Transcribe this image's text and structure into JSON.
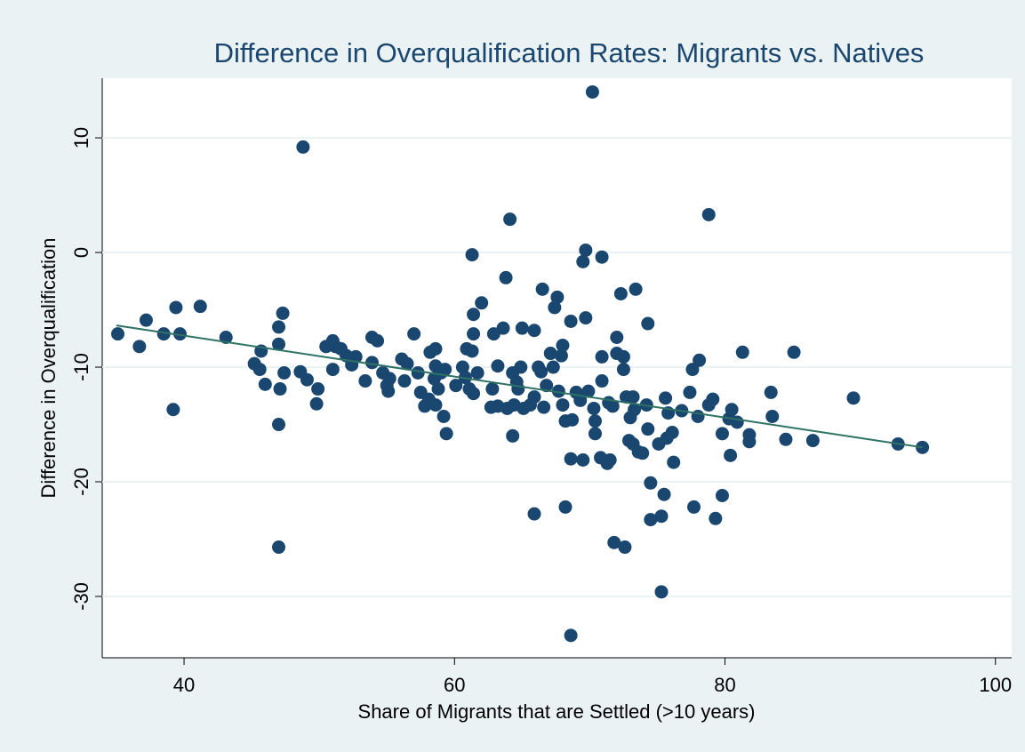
{
  "chart_data": {
    "type": "scatter",
    "title": "Difference in Overqualification Rates: Migrants vs. Natives",
    "x_label": "Share of Migrants that are Settled (>10 years)",
    "y_label": "Difference in Overqualification",
    "xlim": [
      33.95,
      101.2
    ],
    "ylim": [
      -35.35,
      15.2
    ],
    "xticks": [
      40,
      60,
      80,
      100
    ],
    "yticks": [
      -30,
      -20,
      -10,
      0,
      10
    ],
    "grid": true,
    "point_color": "#1a476f",
    "x": [
      35.1,
      36.7,
      37.2,
      38.5,
      39.4,
      39.7,
      39.2,
      41.2,
      43.1,
      48.8,
      70.2,
      64.1,
      78.8,
      69.7,
      61.3,
      70.9,
      69.5,
      63.8,
      66.5,
      73.4,
      67.6,
      72.3,
      67.4,
      62.0,
      61.4,
      69.7,
      68.6,
      74.3,
      65.0,
      65.9,
      63.6,
      62.9,
      61.4,
      57.0,
      47.3,
      47.0,
      47.0,
      72.0,
      53.9,
      54.3,
      68.0,
      60.9,
      61.3,
      58.6,
      58.2,
      67.1,
      67.9,
      72.0,
      72.5,
      70.9,
      78.1,
      81.3,
      85.1,
      45.7,
      45.2,
      45.6,
      46.0,
      47.4,
      47.1,
      47.0,
      47.0,
      48.6,
      49.1,
      49.9,
      49.8,
      50.5,
      51.0,
      51.2,
      51.6,
      51.0,
      52.0,
      52.4,
      52.7,
      53.4,
      53.9,
      54.7,
      55.0,
      55.2,
      55.1,
      56.1,
      56.5,
      56.3,
      57.3,
      57.5,
      57.8,
      58.1,
      58.6,
      59.0,
      58.5,
      58.8,
      59.3,
      58.6,
      59.2,
      59.4,
      60.1,
      60.6,
      60.8,
      61.1,
      61.4,
      61.7,
      62.8,
      62.7,
      63.2,
      63.2,
      63.9,
      64.3,
      64.6,
      64.9,
      64.4,
      65.1,
      64.7,
      65.6,
      65.9,
      66.2,
      66.4,
      66.6,
      64.3,
      65.9,
      66.8,
      67.7,
      68.0,
      68.2,
      68.7,
      68.6,
      68.2,
      68.6,
      69.0,
      69.3,
      69.5,
      69.9,
      70.4,
      70.4,
      70.3,
      70.9,
      71.4,
      70.8,
      71.5,
      71.3,
      71.7,
      71.8,
      72.5,
      72.7,
      72.6,
      73.2,
      73.0,
      73.3,
      72.9,
      73.2,
      73.6,
      73.9,
      74.2,
      74.3,
      74.5,
      74.5,
      75.3,
      75.3,
      75.5,
      75.1,
      75.6,
      75.8,
      75.7,
      76.1,
      76.2,
      76.8,
      77.4,
      77.6,
      77.7,
      78.0,
      78.8,
      79.1,
      79.3,
      79.8,
      79.8,
      80.3,
      80.5,
      80.4,
      80.9,
      81.8,
      81.8,
      83.4,
      83.5,
      84.5,
      86.5,
      89.5,
      92.8,
      94.6,
      67.3
    ],
    "y": [
      -7.1,
      -8.2,
      -5.9,
      -7.1,
      -4.8,
      -7.1,
      -13.7,
      -4.7,
      -7.4,
      9.2,
      14.0,
      2.9,
      3.3,
      0.2,
      -0.2,
      -0.4,
      -0.8,
      -2.2,
      -3.2,
      -3.2,
      -3.9,
      -3.6,
      -4.8,
      -4.4,
      -5.4,
      -5.7,
      -6.0,
      -6.2,
      -6.6,
      -6.8,
      -6.6,
      -7.1,
      -7.1,
      -7.1,
      -5.3,
      -6.5,
      -8.0,
      -7.4,
      -7.4,
      -7.7,
      -8.1,
      -8.4,
      -8.6,
      -8.4,
      -8.7,
      -8.8,
      -9.0,
      -8.8,
      -9.1,
      -9.1,
      -9.4,
      -8.7,
      -8.7,
      -8.6,
      -9.7,
      -10.2,
      -11.5,
      -10.5,
      -11.9,
      -15.0,
      -25.7,
      -10.4,
      -11.1,
      -11.9,
      -13.2,
      -8.2,
      -7.7,
      -8.2,
      -8.4,
      -10.2,
      -9.0,
      -9.8,
      -9.1,
      -11.2,
      -9.6,
      -10.5,
      -11.6,
      -11.0,
      -12.1,
      -9.3,
      -9.7,
      -11.2,
      -10.5,
      -12.2,
      -13.4,
      -12.8,
      -9.9,
      -10.5,
      -11.0,
      -11.9,
      -10.2,
      -13.3,
      -14.3,
      -15.8,
      -11.6,
      -10.0,
      -10.9,
      -11.9,
      -12.3,
      -10.5,
      -11.9,
      -13.5,
      -9.9,
      -13.4,
      -13.6,
      -10.5,
      -11.3,
      -10.0,
      -13.3,
      -13.6,
      -11.9,
      -13.3,
      -12.6,
      -10.0,
      -10.4,
      -13.5,
      -16.0,
      -22.8,
      -11.6,
      -12.1,
      -13.3,
      -14.7,
      -14.6,
      -18.0,
      -22.2,
      -33.4,
      -12.2,
      -12.9,
      -18.1,
      -12.1,
      -14.7,
      -15.8,
      -13.6,
      -11.2,
      -13.1,
      -17.9,
      -18.1,
      -18.4,
      -13.4,
      -25.3,
      -10.2,
      -12.6,
      -25.7,
      -12.6,
      -14.4,
      -13.7,
      -16.4,
      -16.7,
      -17.4,
      -17.5,
      -13.3,
      -15.4,
      -20.1,
      -23.3,
      -23.0,
      -29.6,
      -21.1,
      -16.7,
      -12.7,
      -14.0,
      -16.2,
      -15.7,
      -18.3,
      -13.8,
      -12.2,
      -10.2,
      -22.2,
      -14.3,
      -13.3,
      -12.8,
      -23.2,
      -21.2,
      -15.8,
      -14.5,
      -13.7,
      -17.7,
      -14.8,
      -15.9,
      -16.5,
      -12.2,
      -14.3,
      -16.3,
      -16.4,
      -12.7,
      -16.7,
      -17.0,
      -10.0
    ],
    "fit_line": {
      "color": "#2e7265",
      "x": [
        35,
        94.6
      ],
      "y": [
        -6.36,
        -17.0
      ]
    }
  }
}
